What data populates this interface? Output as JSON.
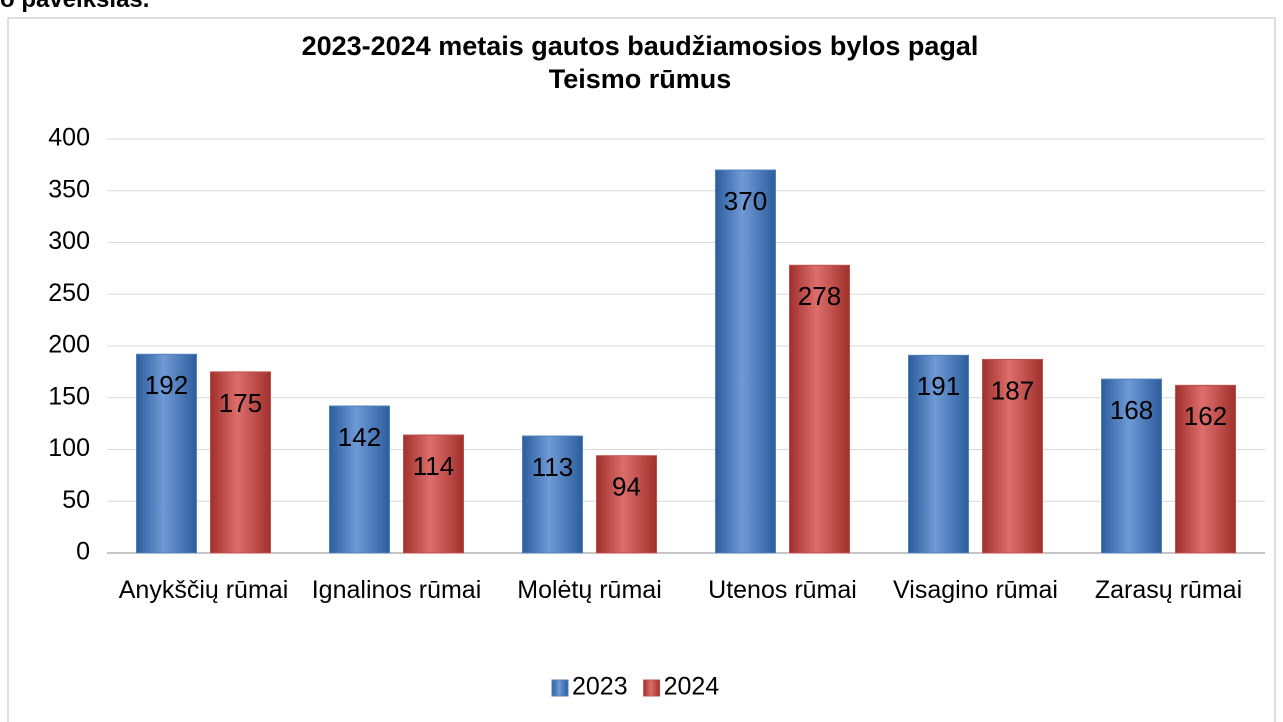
{
  "caption": "o paveikslas.",
  "chart_data": {
    "type": "bar",
    "title": "2023-2024 metais gautos baudžiamosios bylos pagal Teismo rūmus",
    "categories": [
      "Anykščių rūmai",
      "Ignalinos rūmai",
      "Molėtų rūmai",
      "Utenos rūmai",
      "Visagino rūmai",
      "Zarasų rūmai"
    ],
    "series": [
      {
        "name": "2023",
        "color": "#4f81bd",
        "values": [
          192,
          142,
          113,
          370,
          191,
          168
        ]
      },
      {
        "name": "2024",
        "color": "#c0504d",
        "values": [
          175,
          114,
          94,
          278,
          187,
          162
        ]
      }
    ],
    "ylim": [
      0,
      400
    ],
    "yticks": [
      0,
      50,
      100,
      150,
      200,
      250,
      300,
      350,
      400
    ],
    "grid": true,
    "legend": "bottom"
  }
}
